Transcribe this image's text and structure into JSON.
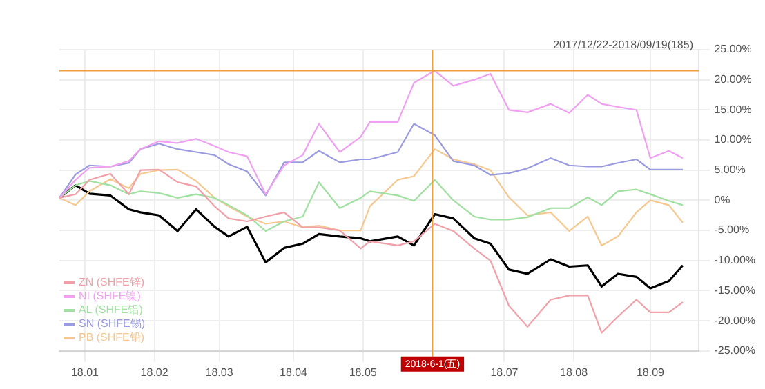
{
  "chart_data": {
    "type": "line",
    "x": [
      "2017-12-22",
      "2017-12-29",
      "2018-01-04",
      "2018-01-13",
      "2018-01-21",
      "2018-01-26",
      "2018-02-03",
      "2018-02-11",
      "2018-02-19",
      "2018-02-27",
      "2018-03-05",
      "2018-03-13",
      "2018-03-21",
      "2018-03-29",
      "2018-04-06",
      "2018-04-13",
      "2018-04-22",
      "2018-05-01",
      "2018-05-05",
      "2018-05-17",
      "2018-05-24",
      "2018-06-02",
      "2018-06-10",
      "2018-06-19",
      "2018-06-26",
      "2018-07-04",
      "2018-07-12",
      "2018-07-22",
      "2018-07-30",
      "2018-08-07",
      "2018-08-13",
      "2018-08-20",
      "2018-08-28",
      "2018-09-03",
      "2018-09-11",
      "2018-09-17"
    ],
    "series": [
      {
        "name": "ZN (SHFE锌)",
        "color": "#f0a0a8",
        "values": [
          0.4,
          1,
          3.4,
          4.4,
          1,
          5,
          5.1,
          3,
          2.3,
          -1,
          -3,
          -3.5,
          -2.7,
          -2,
          -4.5,
          -4.5,
          -5,
          -8,
          -6.8,
          -7.5,
          -6.8,
          -3.9,
          -5.1,
          -8,
          -10,
          -17.5,
          -21,
          -16.5,
          -15.8,
          -15.8,
          -22,
          -19.3,
          -16.5,
          -18.6,
          -18.6,
          -16.9
        ]
      },
      {
        "name": "NI (SHFE镍)",
        "color": "#f0a0f0",
        "values": [
          0.4,
          3.4,
          5.4,
          5.6,
          6.5,
          8.5,
          9.8,
          9.5,
          10.2,
          9,
          8,
          7.3,
          1,
          5.8,
          7.5,
          12.7,
          8,
          10.5,
          13,
          13,
          19.5,
          21.5,
          19,
          20,
          21,
          15,
          14.6,
          16,
          14.5,
          17.5,
          16,
          15.5,
          15,
          7,
          8.2,
          7
        ]
      },
      {
        "name": "AL (SHFE铝)",
        "color": "#a0e0a0",
        "values": [
          0.4,
          2.5,
          3.2,
          2.5,
          1,
          1.5,
          1.2,
          0.4,
          1,
          0.4,
          -0.8,
          -2.5,
          -5.1,
          -3.5,
          -2.7,
          3,
          -1.3,
          0.4,
          1.5,
          0.8,
          -0.1,
          3.4,
          0,
          -2.7,
          -3.2,
          -3.2,
          -2.8,
          -1.3,
          -1.3,
          0.5,
          -0.8,
          1.5,
          1.8,
          1,
          -0.1,
          -0.8
        ]
      },
      {
        "name": "SN (SHFE锡)",
        "color": "#9a9ae0",
        "values": [
          0.4,
          4.3,
          5.8,
          5.6,
          6.2,
          8.5,
          9.4,
          8.5,
          8,
          7.5,
          6,
          4.8,
          0.8,
          6.3,
          6.3,
          8.2,
          6.3,
          6.8,
          6.8,
          8,
          12.7,
          10.8,
          6.5,
          5.8,
          4.2,
          4.5,
          5.3,
          7,
          5.8,
          5.6,
          5.6,
          6.2,
          6.8,
          5.1,
          5.1,
          5.1
        ]
      },
      {
        "name": "PB (SHFE铅)",
        "color": "#f5c890",
        "values": [
          0.4,
          -0.8,
          1.5,
          3.5,
          2,
          4.4,
          5,
          5.1,
          3.2,
          0.4,
          -1,
          -2.7,
          -3.9,
          -3.5,
          -4.5,
          -4.2,
          -5,
          -5,
          -1,
          3.4,
          4,
          8.5,
          6.8,
          6,
          5,
          0.5,
          -2.5,
          -2,
          -5.1,
          -2.7,
          -7.5,
          -6,
          -2,
          0,
          -0.8,
          -3.7
        ]
      },
      {
        "color": "#000000",
        "values": [
          0.4,
          2.5,
          1.1,
          0.8,
          -1.5,
          -2,
          -2.5,
          -5.1,
          -1.5,
          -4.4,
          -6,
          -4.4,
          -10.3,
          -7.9,
          -7.2,
          -5.6,
          -6,
          -6.3,
          -6.8,
          -6,
          -7.5,
          -2.3,
          -3,
          -6.3,
          -7.2,
          -11.5,
          -12.2,
          -9.8,
          -11,
          -10.8,
          -14.3,
          -12.2,
          -12.7,
          -14.6,
          -13.4,
          -10.8
        ]
      }
    ],
    "ylim": [
      -25,
      25
    ],
    "yticks": [
      {
        "value": -25,
        "label": "-25.00%"
      },
      {
        "value": -20,
        "label": "-20.00%"
      },
      {
        "value": -15,
        "label": "-15.00%"
      },
      {
        "value": -10,
        "label": "-10.00%"
      },
      {
        "value": -5,
        "label": "-5.00%"
      },
      {
        "value": 0,
        "label": "0%"
      },
      {
        "value": 5,
        "label": "5.00%"
      },
      {
        "value": 10,
        "label": "10.00%"
      },
      {
        "value": 15,
        "label": "15.00%"
      },
      {
        "value": 20,
        "label": "20.00%"
      },
      {
        "value": 25,
        "label": "25.00%"
      }
    ],
    "xlim": [
      "2017-12-22",
      "2018-09-24"
    ],
    "xticks": [
      {
        "value": "2018-01-02",
        "label": "18.01"
      },
      {
        "value": "2018-02-01",
        "label": "18.02"
      },
      {
        "value": "2018-03-01",
        "label": "18.03"
      },
      {
        "value": "2018-04-02",
        "label": "18.04"
      },
      {
        "value": "2018-05-02",
        "label": "18.05"
      },
      {
        "value": "2018-07-02",
        "label": "18.07"
      },
      {
        "value": "2018-08-01",
        "label": "18.08"
      },
      {
        "value": "2018-09-03",
        "label": "18.09"
      }
    ],
    "ref_lines": [
      {
        "axis": "x",
        "value": "2018-06-01",
        "label": "2018-6-1(五)",
        "color": "#f0a040"
      },
      {
        "axis": "y",
        "value": 21.5,
        "color": "#f0a040"
      }
    ],
    "annotations": [
      "2017/12/22-2018/09/19(185)"
    ],
    "grid": true,
    "legend": "bottom left",
    "marker": "none",
    "line_style": "solid"
  }
}
